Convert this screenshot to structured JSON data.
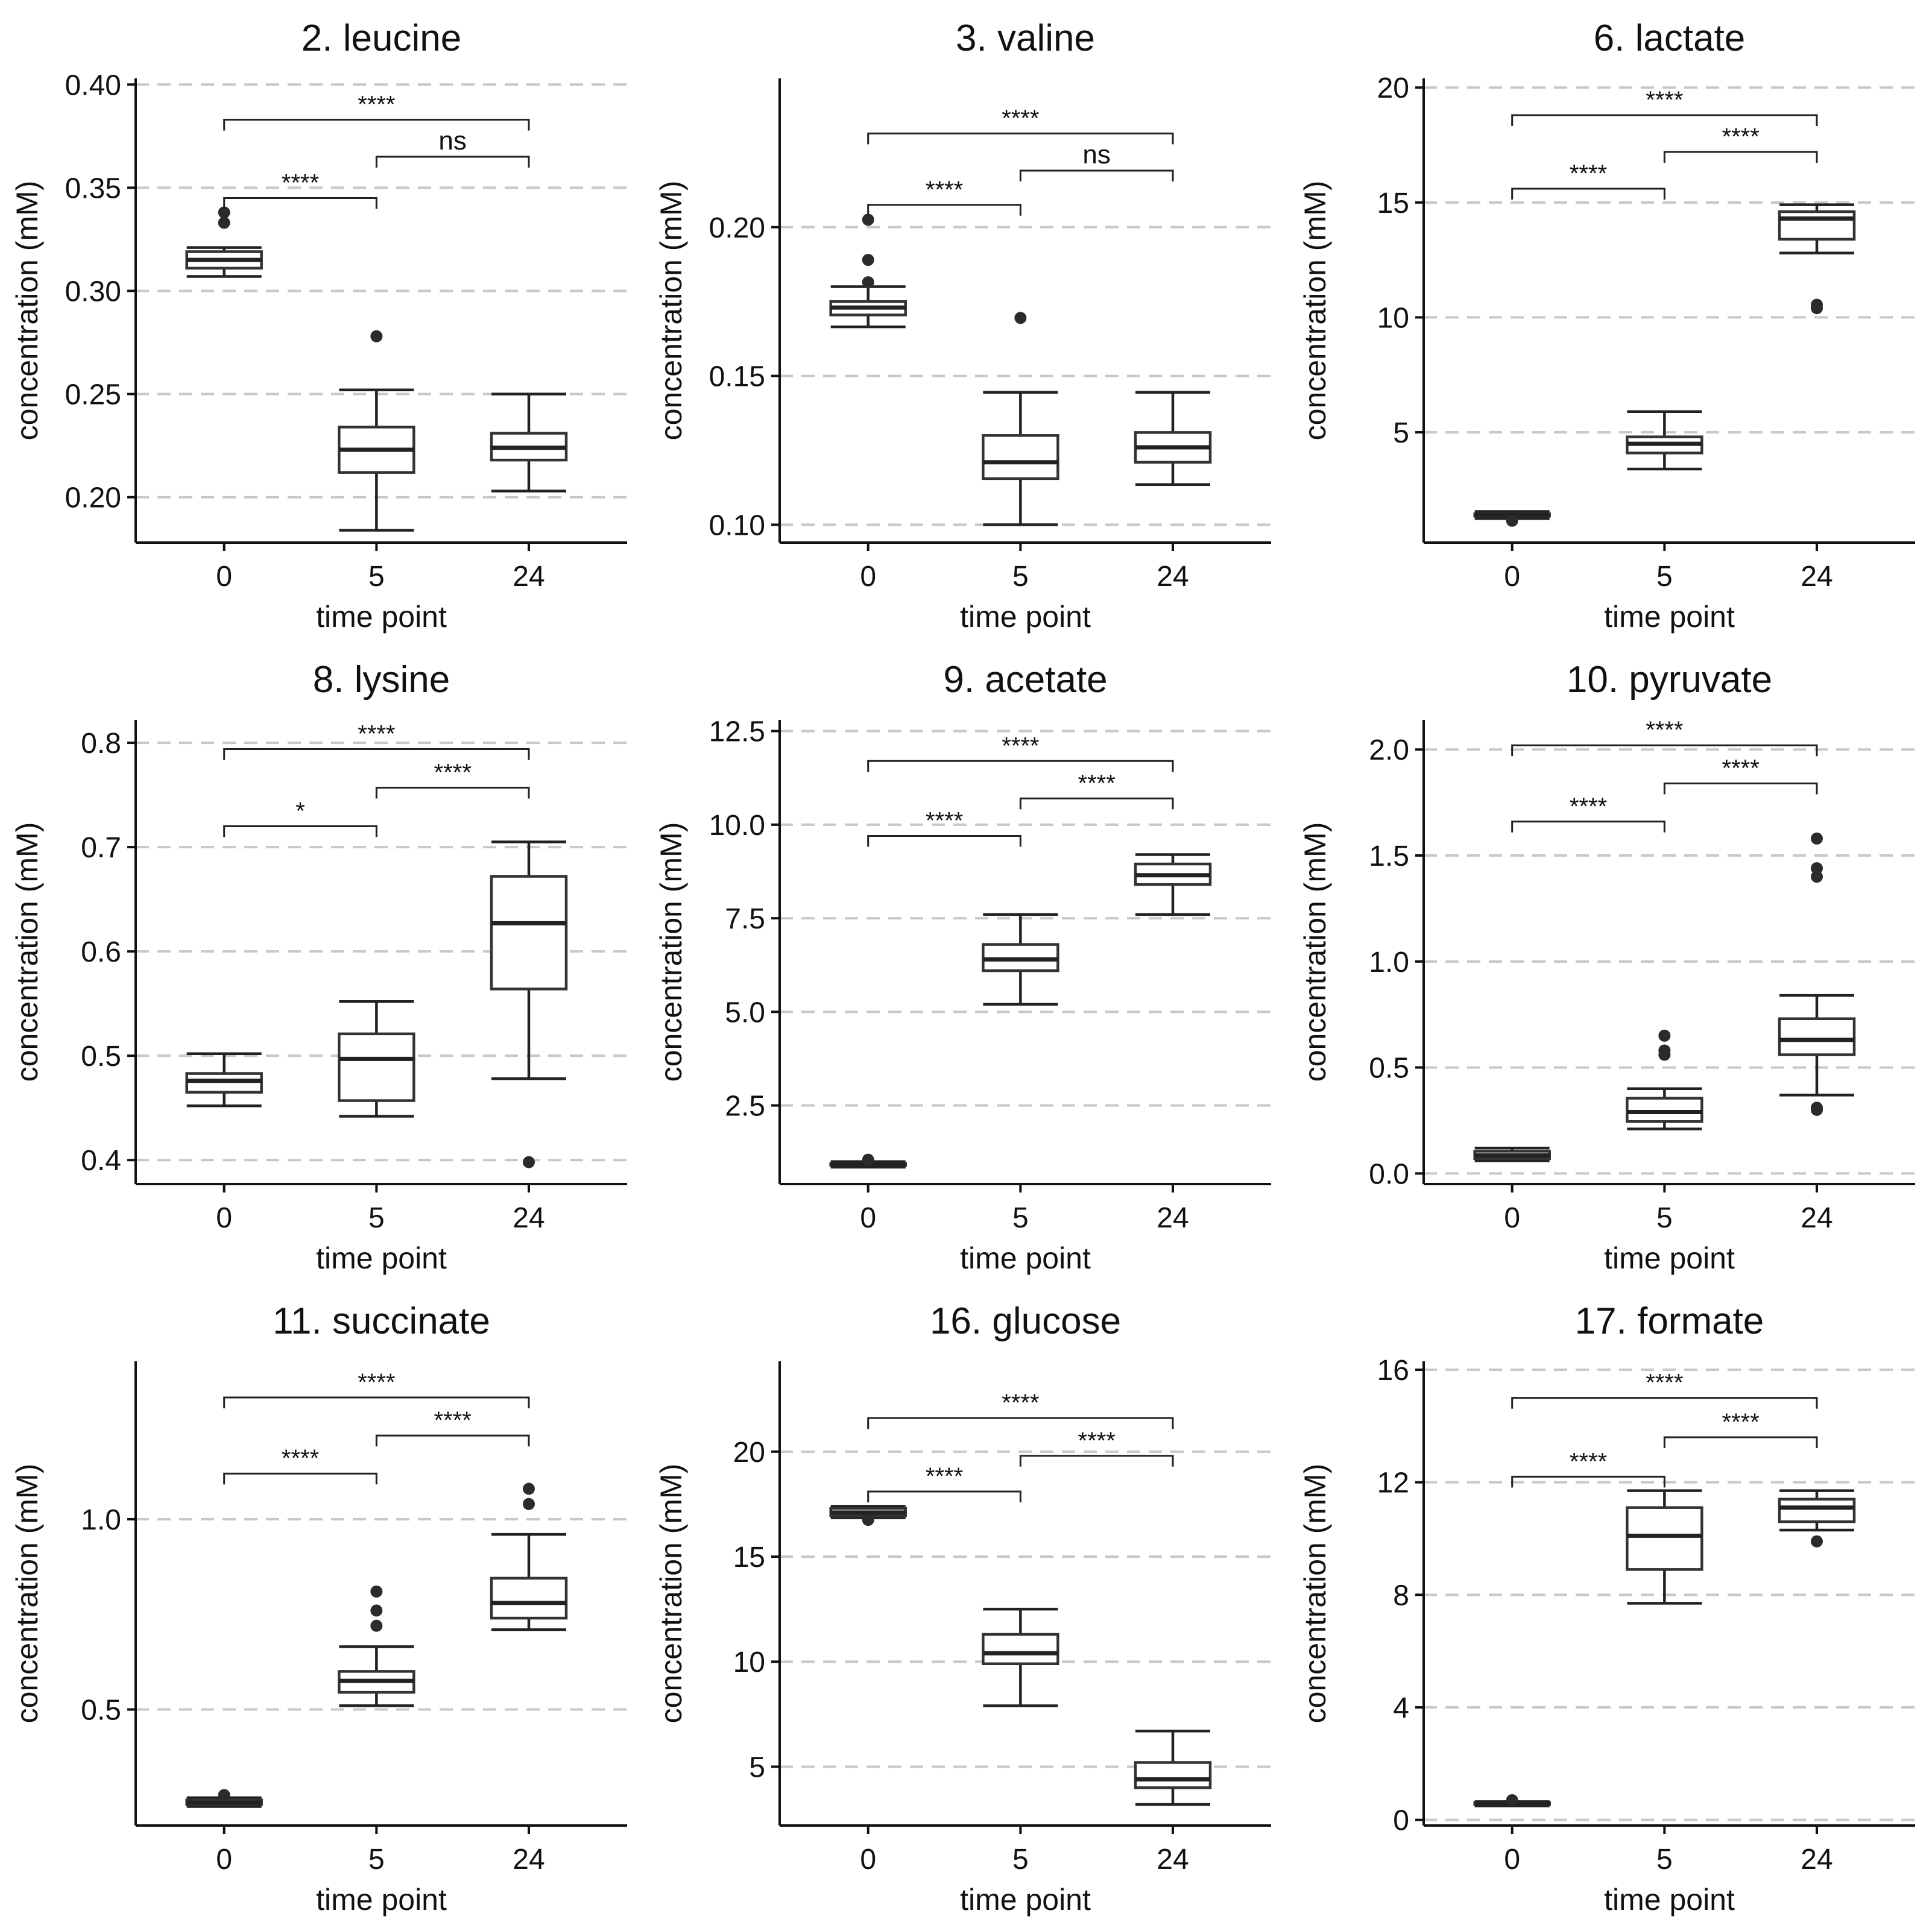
{
  "figure": {
    "rows": 3,
    "cols": 3
  },
  "chart_data": [
    {
      "type": "boxplot",
      "title": "2. leucine",
      "xlabel": "time point",
      "ylabel": "concentration (mM)",
      "categories": [
        "0",
        "5",
        "24"
      ],
      "ylim": [
        0.178,
        0.403
      ],
      "yticks": [
        0.2,
        0.25,
        0.3,
        0.35,
        0.4
      ],
      "yticklabels": [
        "0.20",
        "0.25",
        "0.30",
        "0.35",
        "0.40"
      ],
      "boxes": [
        {
          "category": "0",
          "min": 0.307,
          "q1": 0.311,
          "median": 0.315,
          "q3": 0.319,
          "max": 0.321,
          "outliers": [
            0.333,
            0.338
          ]
        },
        {
          "category": "5",
          "min": 0.184,
          "q1": 0.212,
          "median": 0.223,
          "q3": 0.234,
          "max": 0.252,
          "outliers": [
            0.278
          ]
        },
        {
          "category": "24",
          "min": 0.203,
          "q1": 0.218,
          "median": 0.224,
          "q3": 0.231,
          "max": 0.25,
          "outliers": []
        }
      ],
      "comparisons": [
        {
          "from": "0",
          "to": "5",
          "y": 0.345,
          "label": "****"
        },
        {
          "from": "5",
          "to": "24",
          "y": 0.365,
          "label": "ns"
        },
        {
          "from": "0",
          "to": "24",
          "y": 0.383,
          "label": "****"
        }
      ]
    },
    {
      "type": "boxplot",
      "title": "3. valine",
      "xlabel": "time point",
      "ylabel": "concentration (mM)",
      "categories": [
        "0",
        "5",
        "24"
      ],
      "ylim": [
        0.094,
        0.25
      ],
      "yticks": [
        0.1,
        0.15,
        0.2
      ],
      "yticklabels": [
        "0.10",
        "0.15",
        "0.20"
      ],
      "boxes": [
        {
          "category": "0",
          "min": 0.1665,
          "q1": 0.1705,
          "median": 0.173,
          "q3": 0.175,
          "max": 0.18,
          "outliers": [
            0.1815,
            0.189,
            0.2025
          ]
        },
        {
          "category": "5",
          "min": 0.1,
          "q1": 0.1155,
          "median": 0.121,
          "q3": 0.13,
          "max": 0.1445,
          "outliers": [
            0.1695
          ]
        },
        {
          "category": "24",
          "min": 0.1135,
          "q1": 0.121,
          "median": 0.126,
          "q3": 0.131,
          "max": 0.1445,
          "outliers": []
        }
      ],
      "comparisons": [
        {
          "from": "0",
          "to": "5",
          "y": 0.2075,
          "label": "****"
        },
        {
          "from": "5",
          "to": "24",
          "y": 0.219,
          "label": "ns"
        },
        {
          "from": "0",
          "to": "24",
          "y": 0.2315,
          "label": "****"
        }
      ]
    },
    {
      "type": "boxplot",
      "title": "6. lactate",
      "xlabel": "time point",
      "ylabel": "concentration (mM)",
      "categories": [
        "0",
        "5",
        "24"
      ],
      "ylim": [
        0.2,
        20.4
      ],
      "yticks": [
        5,
        10,
        15,
        20
      ],
      "yticklabels": [
        "5",
        "10",
        "15",
        "20"
      ],
      "boxes": [
        {
          "category": "0",
          "min": 1.25,
          "q1": 1.35,
          "median": 1.4,
          "q3": 1.45,
          "max": 1.55,
          "outliers": [
            1.15
          ]
        },
        {
          "category": "5",
          "min": 3.4,
          "q1": 4.1,
          "median": 4.5,
          "q3": 4.8,
          "max": 5.9,
          "outliers": []
        },
        {
          "category": "24",
          "min": 12.8,
          "q1": 13.4,
          "median": 14.3,
          "q3": 14.6,
          "max": 14.9,
          "outliers": [
            10.4,
            10.55
          ]
        }
      ],
      "comparisons": [
        {
          "from": "0",
          "to": "5",
          "y": 15.6,
          "label": "****"
        },
        {
          "from": "5",
          "to": "24",
          "y": 17.2,
          "label": "****"
        },
        {
          "from": "0",
          "to": "24",
          "y": 18.8,
          "label": "****"
        }
      ]
    },
    {
      "type": "boxplot",
      "title": "8. lysine",
      "xlabel": "time point",
      "ylabel": "concentration (mM)",
      "categories": [
        "0",
        "5",
        "24"
      ],
      "ylim": [
        0.377,
        0.822
      ],
      "yticks": [
        0.4,
        0.5,
        0.6,
        0.7,
        0.8
      ],
      "yticklabels": [
        "0.4",
        "0.5",
        "0.6",
        "0.7",
        "0.8"
      ],
      "boxes": [
        {
          "category": "0",
          "min": 0.452,
          "q1": 0.465,
          "median": 0.476,
          "q3": 0.483,
          "max": 0.502,
          "outliers": []
        },
        {
          "category": "5",
          "min": 0.442,
          "q1": 0.457,
          "median": 0.497,
          "q3": 0.521,
          "max": 0.552,
          "outliers": []
        },
        {
          "category": "24",
          "min": 0.478,
          "q1": 0.564,
          "median": 0.627,
          "q3": 0.672,
          "max": 0.705,
          "outliers": [
            0.398
          ]
        }
      ],
      "comparisons": [
        {
          "from": "0",
          "to": "5",
          "y": 0.72,
          "label": "*"
        },
        {
          "from": "5",
          "to": "24",
          "y": 0.757,
          "label": "****"
        },
        {
          "from": "0",
          "to": "24",
          "y": 0.794,
          "label": "****"
        }
      ]
    },
    {
      "type": "boxplot",
      "title": "9. acetate",
      "xlabel": "time point",
      "ylabel": "concentration (mM)",
      "categories": [
        "0",
        "5",
        "24"
      ],
      "ylim": [
        0.4,
        12.8
      ],
      "yticks": [
        2.5,
        5.0,
        7.5,
        10.0,
        12.5
      ],
      "yticklabels": [
        "2.5",
        "5.0",
        "7.5",
        "10.0",
        "12.5"
      ],
      "boxes": [
        {
          "category": "0",
          "min": 0.85,
          "q1": 0.9,
          "median": 0.92,
          "q3": 0.95,
          "max": 1.0,
          "outliers": [
            1.05
          ]
        },
        {
          "category": "5",
          "min": 5.2,
          "q1": 6.1,
          "median": 6.4,
          "q3": 6.8,
          "max": 7.6,
          "outliers": []
        },
        {
          "category": "24",
          "min": 7.6,
          "q1": 8.4,
          "median": 8.65,
          "q3": 8.95,
          "max": 9.2,
          "outliers": []
        }
      ],
      "comparisons": [
        {
          "from": "0",
          "to": "5",
          "y": 9.7,
          "label": "****"
        },
        {
          "from": "5",
          "to": "24",
          "y": 10.7,
          "label": "****"
        },
        {
          "from": "0",
          "to": "24",
          "y": 11.7,
          "label": "****"
        }
      ]
    },
    {
      "type": "boxplot",
      "title": "10. pyruvate",
      "xlabel": "time point",
      "ylabel": "concentration (mM)",
      "categories": [
        "0",
        "5",
        "24"
      ],
      "ylim": [
        -0.05,
        2.14
      ],
      "yticks": [
        0.0,
        0.5,
        1.0,
        1.5,
        2.0
      ],
      "yticklabels": [
        "0.0",
        "0.5",
        "1.0",
        "1.5",
        "2.0"
      ],
      "boxes": [
        {
          "category": "0",
          "min": 0.06,
          "q1": 0.07,
          "median": 0.085,
          "q3": 0.105,
          "max": 0.12,
          "outliers": []
        },
        {
          "category": "5",
          "min": 0.21,
          "q1": 0.245,
          "median": 0.29,
          "q3": 0.355,
          "max": 0.4,
          "outliers": [
            0.56,
            0.58,
            0.65
          ]
        },
        {
          "category": "24",
          "min": 0.37,
          "q1": 0.56,
          "median": 0.63,
          "q3": 0.73,
          "max": 0.84,
          "outliers": [
            0.3,
            0.31,
            1.4,
            1.44,
            1.58
          ]
        }
      ],
      "comparisons": [
        {
          "from": "0",
          "to": "5",
          "y": 1.66,
          "label": "****"
        },
        {
          "from": "5",
          "to": "24",
          "y": 1.84,
          "label": "****"
        },
        {
          "from": "0",
          "to": "24",
          "y": 2.02,
          "label": "****"
        }
      ]
    },
    {
      "type": "boxplot",
      "title": "11. succinate",
      "xlabel": "time point",
      "ylabel": "concentration (mM)",
      "categories": [
        "0",
        "5",
        "24"
      ],
      "ylim": [
        0.195,
        1.415
      ],
      "yticks": [
        0.5,
        1.0
      ],
      "yticklabels": [
        "0.5",
        "1.0"
      ],
      "boxes": [
        {
          "category": "0",
          "min": 0.245,
          "q1": 0.25,
          "median": 0.255,
          "q3": 0.262,
          "max": 0.268,
          "outliers": [
            0.275
          ]
        },
        {
          "category": "5",
          "min": 0.51,
          "q1": 0.545,
          "median": 0.575,
          "q3": 0.6,
          "max": 0.665,
          "outliers": [
            0.72,
            0.76,
            0.81
          ]
        },
        {
          "category": "24",
          "min": 0.71,
          "q1": 0.74,
          "median": 0.78,
          "q3": 0.845,
          "max": 0.96,
          "outliers": [
            1.04,
            1.08
          ]
        }
      ],
      "comparisons": [
        {
          "from": "0",
          "to": "5",
          "y": 1.12,
          "label": "****"
        },
        {
          "from": "5",
          "to": "24",
          "y": 1.22,
          "label": "****"
        },
        {
          "from": "0",
          "to": "24",
          "y": 1.32,
          "label": "****"
        }
      ]
    },
    {
      "type": "boxplot",
      "title": "16. glucose",
      "xlabel": "time point",
      "ylabel": "concentration (mM)",
      "categories": [
        "0",
        "5",
        "24"
      ],
      "ylim": [
        2.2,
        24.3
      ],
      "yticks": [
        5,
        10,
        15,
        20
      ],
      "yticklabels": [
        "5",
        "10",
        "15",
        "20"
      ],
      "boxes": [
        {
          "category": "0",
          "min": 16.85,
          "q1": 16.95,
          "median": 17.1,
          "q3": 17.3,
          "max": 17.4,
          "outliers": [
            16.75
          ]
        },
        {
          "category": "5",
          "min": 7.9,
          "q1": 9.9,
          "median": 10.4,
          "q3": 11.3,
          "max": 12.5,
          "outliers": []
        },
        {
          "category": "24",
          "min": 3.2,
          "q1": 4.0,
          "median": 4.4,
          "q3": 5.2,
          "max": 6.7,
          "outliers": []
        }
      ],
      "comparisons": [
        {
          "from": "0",
          "to": "5",
          "y": 18.1,
          "label": "****"
        },
        {
          "from": "5",
          "to": "24",
          "y": 19.8,
          "label": "****"
        },
        {
          "from": "0",
          "to": "24",
          "y": 21.6,
          "label": "****"
        }
      ]
    },
    {
      "type": "boxplot",
      "title": "17. formate",
      "xlabel": "time point",
      "ylabel": "concentration (mM)",
      "categories": [
        "0",
        "5",
        "24"
      ],
      "ylim": [
        -0.2,
        16.3
      ],
      "yticks": [
        0,
        4,
        8,
        12,
        16
      ],
      "yticklabels": [
        "0",
        "4",
        "8",
        "12",
        "16"
      ],
      "boxes": [
        {
          "category": "0",
          "min": 0.5,
          "q1": 0.55,
          "median": 0.58,
          "q3": 0.62,
          "max": 0.65,
          "outliers": [
            0.7
          ]
        },
        {
          "category": "5",
          "min": 7.7,
          "q1": 8.9,
          "median": 10.1,
          "q3": 11.1,
          "max": 11.7,
          "outliers": []
        },
        {
          "category": "24",
          "min": 10.3,
          "q1": 10.6,
          "median": 11.1,
          "q3": 11.4,
          "max": 11.7,
          "outliers": [
            9.9
          ]
        }
      ],
      "comparisons": [
        {
          "from": "0",
          "to": "5",
          "y": 12.2,
          "label": "****"
        },
        {
          "from": "5",
          "to": "24",
          "y": 13.6,
          "label": "****"
        },
        {
          "from": "0",
          "to": "24",
          "y": 15.0,
          "label": "****"
        }
      ]
    }
  ]
}
